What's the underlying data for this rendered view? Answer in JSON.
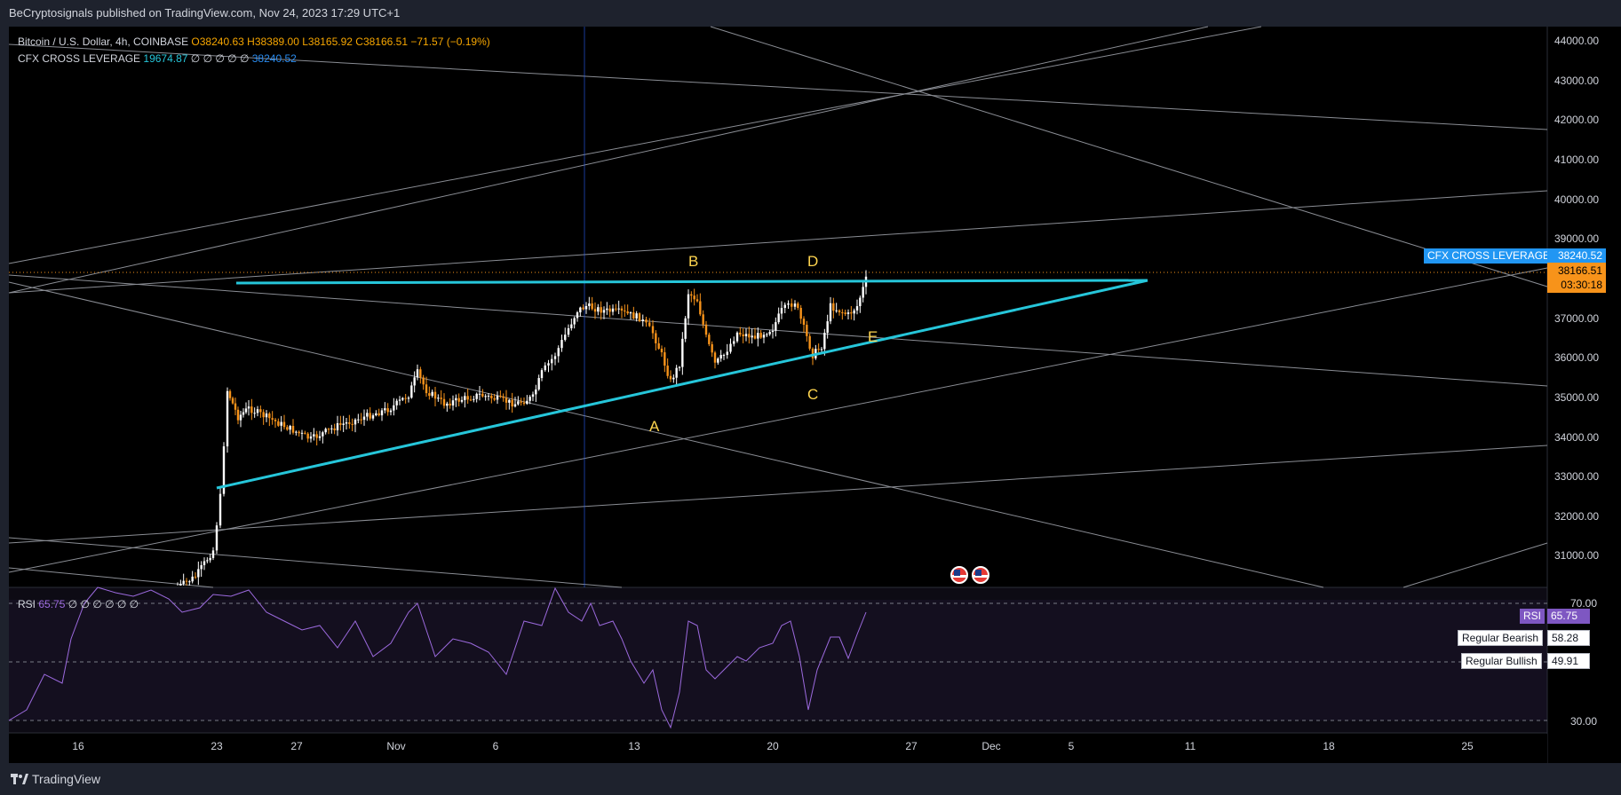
{
  "header": {
    "publisher_line": "BeCryptosignals published on TradingView.com, Nov 24, 2023 17:29 UTC+1"
  },
  "main_legend": {
    "symbol": "Bitcoin / U.S. Dollar, 4h, COINBASE",
    "open": "O38240.63",
    "high": "H38389.00",
    "low": "L38165.92",
    "close": "C38166.51",
    "change": "−71.57 (−0.19%)"
  },
  "cfx_legend": {
    "name": "CFX CROSS LEVERAGE",
    "value": "19674.87",
    "placeholders": "∅ ∅ ∅ ∅ ∅",
    "price": "38240.52"
  },
  "rsi_legend": {
    "name": "RSI",
    "value": "65.75",
    "placeholders": "∅ ∅ ∅ ∅ ∅ ∅"
  },
  "price_scale": {
    "labels": [
      "44000.00",
      "43000.00",
      "42000.00",
      "41000.00",
      "40000.00",
      "39000.00",
      "37000.00",
      "36000.00",
      "35000.00",
      "34000.00",
      "33000.00",
      "32000.00",
      "31000.00"
    ],
    "cfx_tag_label": "CFX CROSS LEVERAGE",
    "cfx_tag_value": "38240.52",
    "last_price": "38166.51",
    "countdown": "03:30:18"
  },
  "rsi_scale": {
    "upper": "70.00",
    "lower": "30.00",
    "rsi_tag_label": "RSI",
    "rsi_tag_value": "65.75",
    "bearish_label": "Regular Bearish",
    "bearish_value": "58.28",
    "bullish_label": "Regular Bullish",
    "bullish_value": "49.91"
  },
  "time_axis": {
    "labels": [
      "16",
      "23",
      "27",
      "Nov",
      "6",
      "13",
      "20",
      "27",
      "Dec",
      "5",
      "11",
      "18",
      "25"
    ]
  },
  "wave_labels": [
    "A",
    "B",
    "C",
    "D",
    "E"
  ],
  "footer": {
    "brand": "TradingView"
  },
  "colors": {
    "up_candle": "#ffffff",
    "down_candle": "#f7931a",
    "trendline": "#26c6da",
    "rsi_line": "#9c6ade",
    "wave_label": "#ffd54f"
  }
}
